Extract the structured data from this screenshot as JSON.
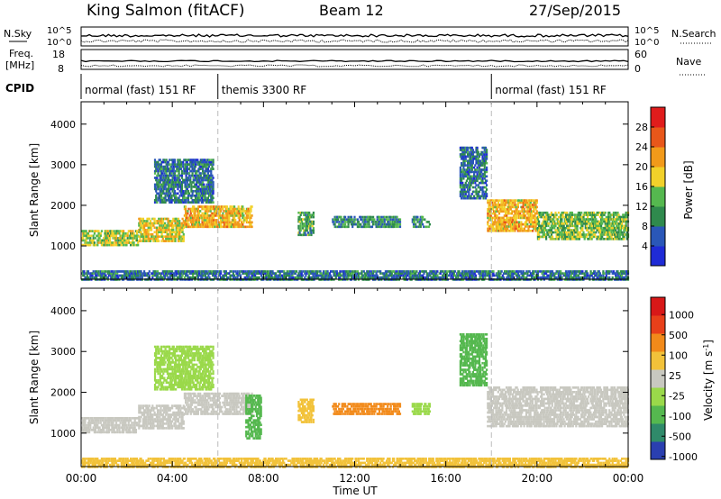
{
  "header": {
    "station": "King Salmon (fitACF)",
    "beam": "Beam 12",
    "date": "27/Sep/2015"
  },
  "noise_panel": {
    "left_label": "N.Sky",
    "right_label": "N.Search",
    "left_ticks": [
      "10^5",
      "10^0"
    ],
    "right_ticks": [
      "10^5",
      "10^0"
    ]
  },
  "freq_panel": {
    "left_label_1": "Freq.",
    "left_label_2": "[MHz]",
    "right_label": "Nave",
    "left_ticks": [
      "18",
      "8"
    ],
    "right_ticks": [
      "60",
      "0"
    ]
  },
  "cpid": {
    "label": "CPID",
    "modes": [
      {
        "name": "normal (fast) 151 RF",
        "start": 0,
        "end": 6
      },
      {
        "name": "themis 3300 RF",
        "start": 6,
        "end": 18
      },
      {
        "name": "normal (fast) 151 RF",
        "start": 18,
        "end": 24
      }
    ]
  },
  "chart_data": [
    {
      "type": "heatmap",
      "title": "",
      "xlabel": "Time UT",
      "ylabel": "Slant Range [km]",
      "xlim": [
        0,
        24
      ],
      "ylim": [
        180,
        4550
      ],
      "x_ticks": [
        "00:00",
        "04:00",
        "08:00",
        "12:00",
        "16:00",
        "20:00",
        "00:00"
      ],
      "y_ticks": [
        1000,
        2000,
        3000,
        4000
      ],
      "colorbar": {
        "label": "Power [dB]",
        "ticks": [
          4,
          8,
          12,
          16,
          20,
          24,
          28
        ],
        "colors": [
          "#1f2bd6",
          "#2a57b8",
          "#2f8a4d",
          "#55b84f",
          "#f2d12a",
          "#f29a1a",
          "#e8571a",
          "#e01c1c"
        ]
      },
      "regions": [
        {
          "t0": 0.0,
          "t1": 2.5,
          "r0": 1050,
          "r1": 1450,
          "value": 16
        },
        {
          "t0": 2.5,
          "t1": 4.5,
          "r0": 1150,
          "r1": 1750,
          "value": 18
        },
        {
          "t0": 4.5,
          "t1": 7.5,
          "r0": 1500,
          "r1": 2050,
          "value": 20
        },
        {
          "t0": 3.2,
          "t1": 5.8,
          "r0": 2100,
          "r1": 3200,
          "value": 8
        },
        {
          "t0": 9.5,
          "t1": 10.2,
          "r0": 1300,
          "r1": 1900,
          "value": 12
        },
        {
          "t0": 11.0,
          "t1": 14.0,
          "r0": 1500,
          "r1": 1800,
          "value": 10
        },
        {
          "t0": 14.5,
          "t1": 15.3,
          "r0": 1500,
          "r1": 1800,
          "value": 10
        },
        {
          "t0": 16.6,
          "t1": 17.8,
          "r0": 2200,
          "r1": 3500,
          "value": 8
        },
        {
          "t0": 17.8,
          "t1": 20.0,
          "r0": 1400,
          "r1": 2200,
          "value": 20
        },
        {
          "t0": 20.0,
          "t1": 24.0,
          "r0": 1200,
          "r1": 1900,
          "value": 14
        },
        {
          "t0": 0.0,
          "t1": 24.0,
          "r0": 200,
          "r1": 450,
          "value": 8
        }
      ]
    },
    {
      "type": "heatmap",
      "title": "",
      "xlabel": "Time UT",
      "ylabel": "Slant Range [km]",
      "xlim": [
        0,
        24
      ],
      "ylim": [
        180,
        4550
      ],
      "x_ticks": [
        "00:00",
        "04:00",
        "08:00",
        "12:00",
        "16:00",
        "20:00",
        "00:00"
      ],
      "y_ticks": [
        1000,
        2000,
        3000,
        4000
      ],
      "colorbar": {
        "label": "Velocity [m s-1]",
        "label_parts": [
          "Velocity [m s",
          "-1",
          "]"
        ],
        "ticks": [
          1000,
          500,
          100,
          25,
          -25,
          -100,
          -500,
          -1000
        ],
        "colors": [
          "#2a3fb0",
          "#2f8a6a",
          "#55b84f",
          "#9ad94a",
          "#c8c8c0",
          "#f2c23a",
          "#f28a1a",
          "#e8401a",
          "#d81818"
        ]
      },
      "regions": [
        {
          "t0": 0.0,
          "t1": 2.5,
          "r0": 1050,
          "r1": 1450,
          "value": 0
        },
        {
          "t0": 2.5,
          "t1": 4.5,
          "r0": 1150,
          "r1": 1750,
          "value": 0
        },
        {
          "t0": 4.5,
          "t1": 7.5,
          "r0": 1500,
          "r1": 2050,
          "value": 0
        },
        {
          "t0": 3.2,
          "t1": 5.8,
          "r0": 2100,
          "r1": 3200,
          "value": -80
        },
        {
          "t0": 7.2,
          "t1": 7.9,
          "r0": 900,
          "r1": 2000,
          "value": -300
        },
        {
          "t0": 9.5,
          "t1": 10.2,
          "r0": 1300,
          "r1": 1900,
          "value": 80
        },
        {
          "t0": 11.0,
          "t1": 14.0,
          "r0": 1500,
          "r1": 1800,
          "value": 200
        },
        {
          "t0": 14.5,
          "t1": 15.3,
          "r0": 1500,
          "r1": 1800,
          "value": -60
        },
        {
          "t0": 16.6,
          "t1": 17.8,
          "r0": 2200,
          "r1": 3500,
          "value": -150
        },
        {
          "t0": 17.8,
          "t1": 24.0,
          "r0": 1200,
          "r1": 2200,
          "value": 0
        },
        {
          "t0": 0.0,
          "t1": 24.0,
          "r0": 200,
          "r1": 450,
          "value": 60
        }
      ]
    }
  ]
}
